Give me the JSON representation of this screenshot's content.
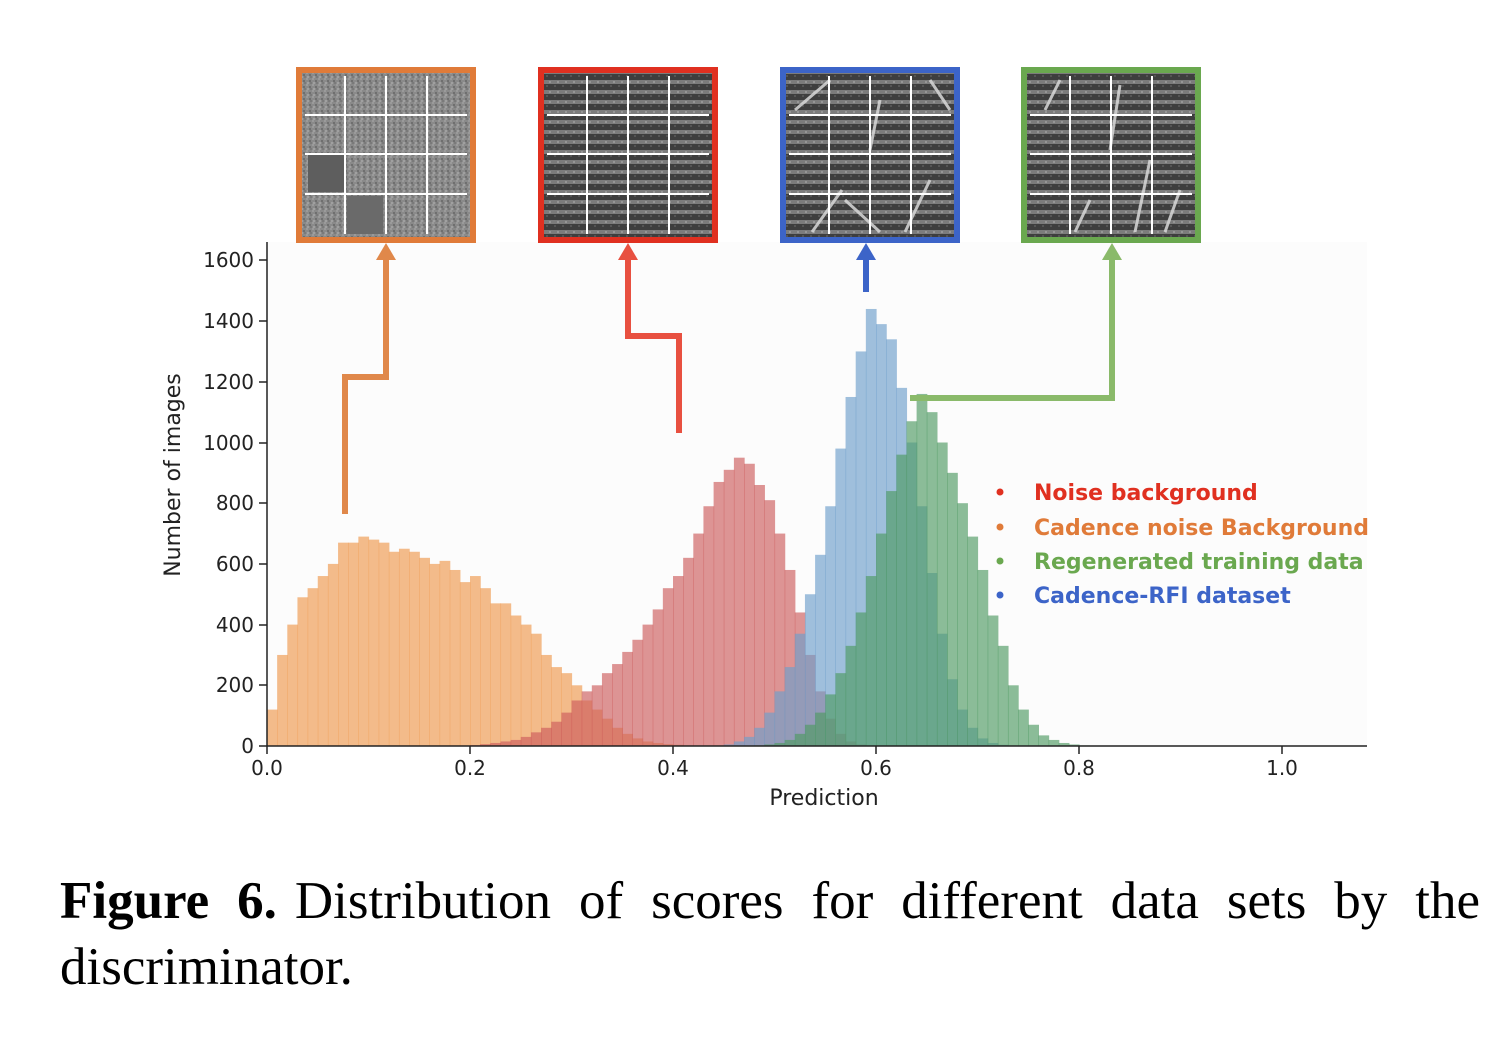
{
  "chart_data": {
    "type": "bar",
    "chart_subtype": "overlaid histogram",
    "xlabel": "Prediction",
    "ylabel": "Number of images",
    "xlim": [
      0.0,
      1.08
    ],
    "ylim": [
      0,
      1660
    ],
    "xticks": [
      "0.0",
      "0.2",
      "0.4",
      "0.6",
      "0.8",
      "1.0"
    ],
    "yticks": [
      "0",
      "200",
      "400",
      "600",
      "800",
      "1000",
      "1200",
      "1400",
      "1600"
    ],
    "bin_width": 0.01,
    "grid": false,
    "legend_position": "right",
    "series": [
      {
        "name": "Cadence noise Background",
        "color": "#f0a05a",
        "thumbnail_color": "#e07b39",
        "thumbnail_pattern": "noise",
        "x_start": 0.0,
        "values": [
          120,
          300,
          400,
          490,
          520,
          560,
          600,
          670,
          670,
          690,
          680,
          670,
          640,
          650,
          640,
          620,
          600,
          610,
          580,
          540,
          560,
          520,
          470,
          470,
          430,
          400,
          370,
          300,
          260,
          240,
          200,
          150,
          120,
          90,
          60,
          40,
          25,
          15,
          10,
          6,
          4,
          2,
          1
        ]
      },
      {
        "name": "Noise background",
        "color": "#cd5c5c",
        "thumbnail_color": "#e03020",
        "thumbnail_pattern": "stripes",
        "x_start": 0.2,
        "values": [
          3,
          6,
          10,
          15,
          20,
          30,
          45,
          60,
          80,
          110,
          150,
          180,
          200,
          240,
          270,
          310,
          350,
          400,
          450,
          520,
          560,
          620,
          700,
          790,
          870,
          910,
          950,
          930,
          860,
          810,
          700,
          580,
          440,
          300,
          180,
          90,
          40,
          15,
          5
        ]
      },
      {
        "name": "Cadence-RFI dataset",
        "color": "#6d9ecb",
        "thumbnail_color": "#4060c0",
        "thumbnail_pattern": "stripes-with-diagonals",
        "x_start": 0.45,
        "values": [
          5,
          15,
          30,
          60,
          110,
          180,
          260,
          370,
          500,
          630,
          790,
          980,
          1150,
          1300,
          1440,
          1390,
          1340,
          1180,
          1000,
          790,
          570,
          370,
          220,
          120,
          60,
          25,
          10,
          4
        ]
      },
      {
        "name": "Regenerated training data",
        "color": "#4f9a63",
        "thumbnail_color": "#7aaa50",
        "thumbnail_pattern": "stripes-with-diagonals",
        "x_start": 0.48,
        "values": [
          2,
          5,
          10,
          20,
          40,
          70,
          110,
          170,
          240,
          330,
          440,
          560,
          700,
          840,
          960,
          1070,
          1160,
          1100,
          1000,
          900,
          800,
          690,
          580,
          430,
          330,
          200,
          120,
          70,
          35,
          20,
          10,
          5,
          2,
          1
        ]
      }
    ]
  },
  "legend": [
    {
      "label": "Noise background",
      "color": "#e03020"
    },
    {
      "label": "Cadence noise Background",
      "color": "#e07b39"
    },
    {
      "label": "Regenerated training data",
      "color": "#6aa84f"
    },
    {
      "label": "Cadence-RFI dataset",
      "color": "#3c64c8"
    }
  ],
  "caption": {
    "label": "Figure 6.",
    "text": "Distribution of scores for different data sets by the discriminator."
  }
}
